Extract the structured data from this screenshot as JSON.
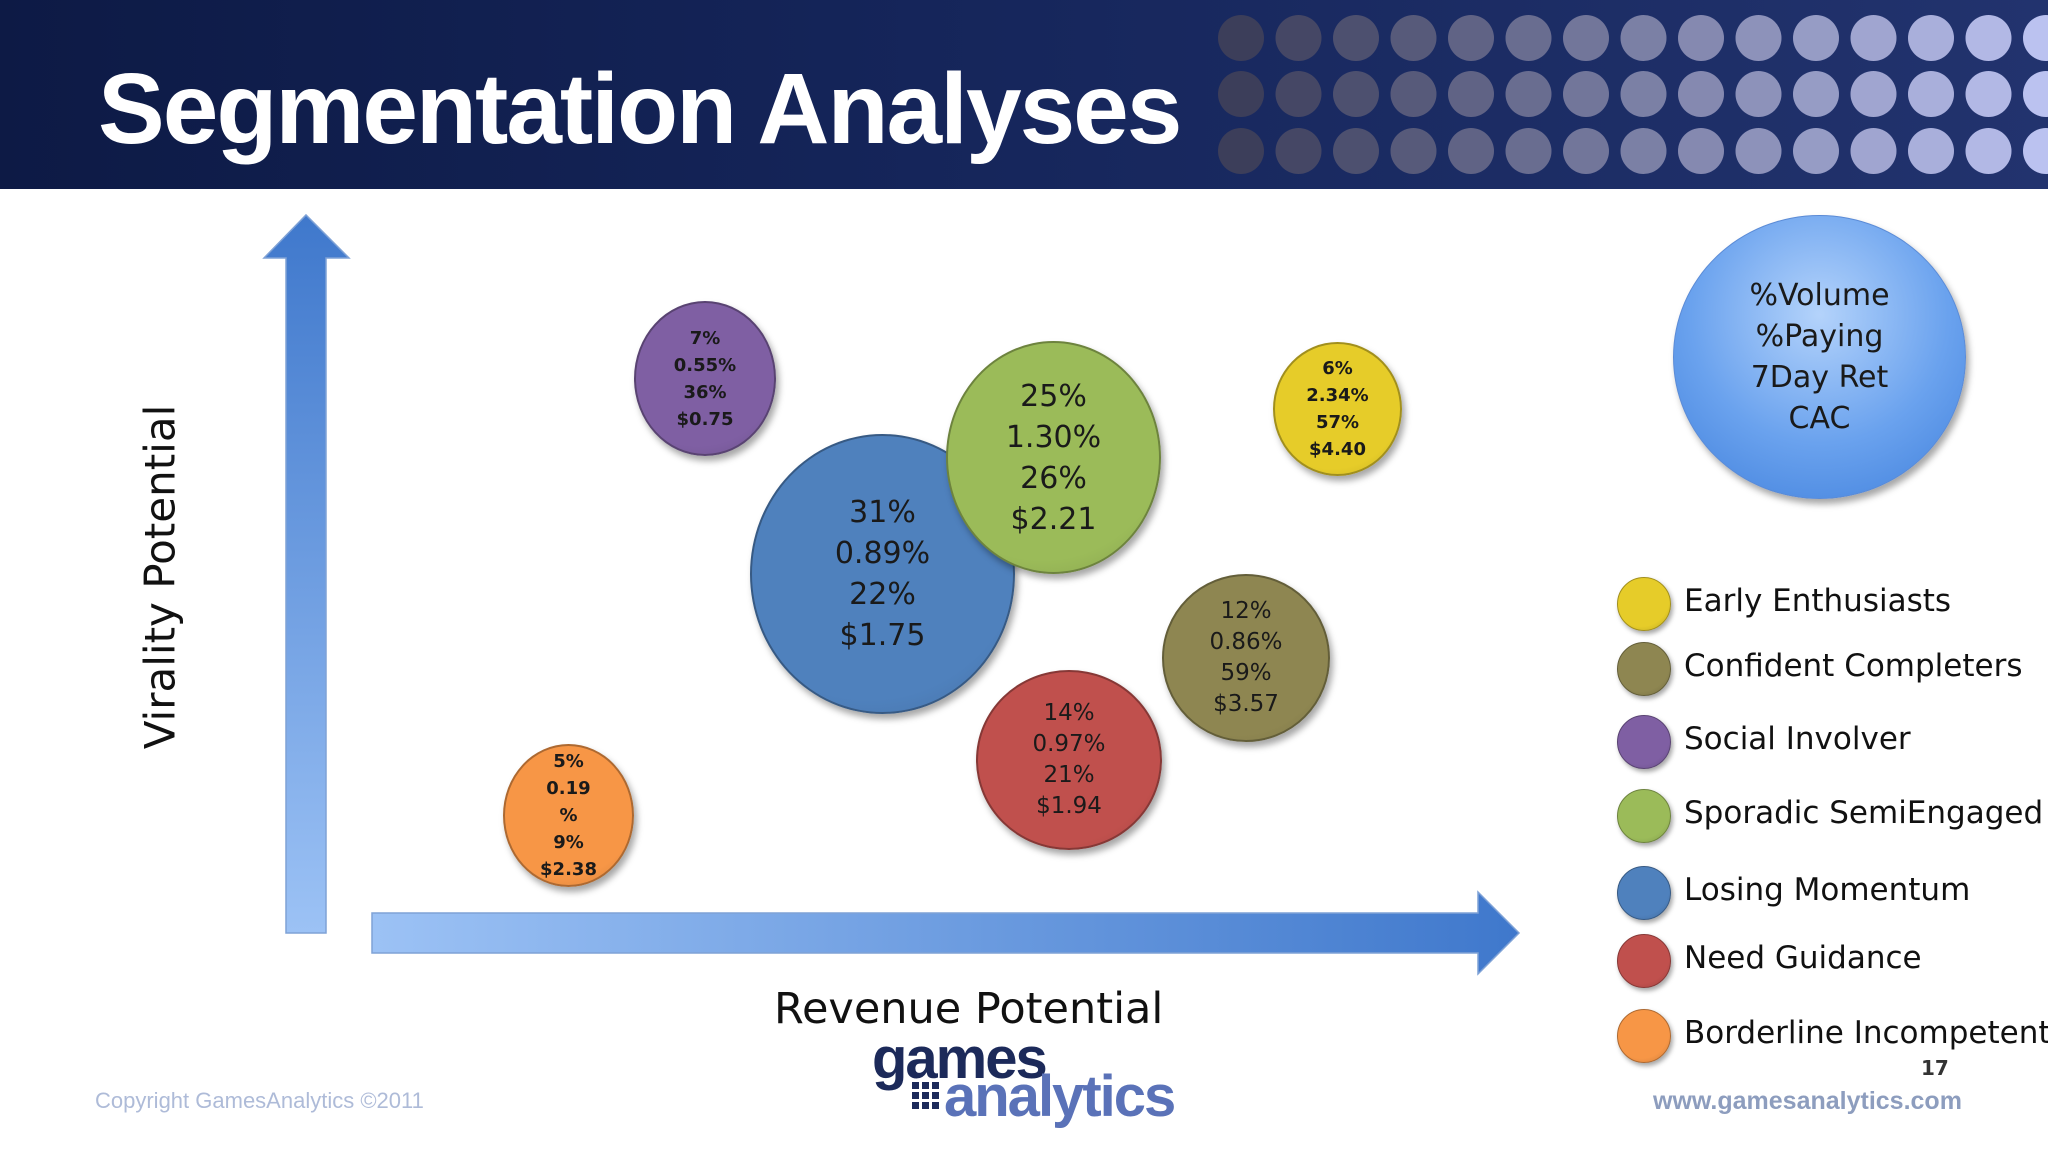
{
  "slide": {
    "title": "Segmentation Analyses",
    "page_number": "17",
    "copyright": "Copyright GamesAnalytics ©2011",
    "website": "www.gamesanalytics.com",
    "logo": {
      "line1": "games",
      "line2": "analytics"
    }
  },
  "axes": {
    "x_label": "Revenue Potential",
    "y_label": "Virality Potential"
  },
  "key_bubble": {
    "lines": [
      "%Volume",
      "%Paying",
      "7Day Ret",
      "CAC"
    ],
    "color": "#6aa2ee"
  },
  "bubbles": [
    {
      "segment": "Social Involver",
      "lines": [
        "7%",
        "0.55%",
        "36%",
        "$0.75"
      ],
      "color": "#7f5fa3"
    },
    {
      "segment": "Losing Momentum",
      "lines": [
        "31%",
        "0.89%",
        "22%",
        "$1.75"
      ],
      "color": "#4f81bd"
    },
    {
      "segment": "Sporadic SemiEngaged",
      "lines": [
        "25%",
        "1.30%",
        "26%",
        "$2.21"
      ],
      "color": "#9bbb59"
    },
    {
      "segment": "Early Enthusiasts",
      "lines": [
        "6%",
        "2.34%",
        "57%",
        "$4.40"
      ],
      "color": "#e6cc29"
    },
    {
      "segment": "Confident Completers",
      "lines": [
        "12%",
        "0.86%",
        "59%",
        "$3.57"
      ],
      "color": "#8e8651"
    },
    {
      "segment": "Need Guidance",
      "lines": [
        "14%",
        "0.97%",
        "21%",
        "$1.94"
      ],
      "color": "#c0504d"
    },
    {
      "segment": "Borderline Incompetent",
      "lines": [
        "5%",
        "0.19",
        "%",
        "9%",
        "$2.38"
      ],
      "color": "#f79646"
    }
  ],
  "legend": [
    {
      "label": "Early Enthusiasts",
      "color": "#e6cc29"
    },
    {
      "label": "Confident Completers",
      "color": "#8e8651"
    },
    {
      "label": "Social Involver",
      "color": "#7f5fa3"
    },
    {
      "label": "Sporadic SemiEngaged",
      "color": "#9bbb59"
    },
    {
      "label": "Losing Momentum",
      "color": "#4f81bd"
    },
    {
      "label": "Need Guidance",
      "color": "#c0504d"
    },
    {
      "label": "Borderline Incompetent",
      "color": "#f79646"
    }
  ]
}
